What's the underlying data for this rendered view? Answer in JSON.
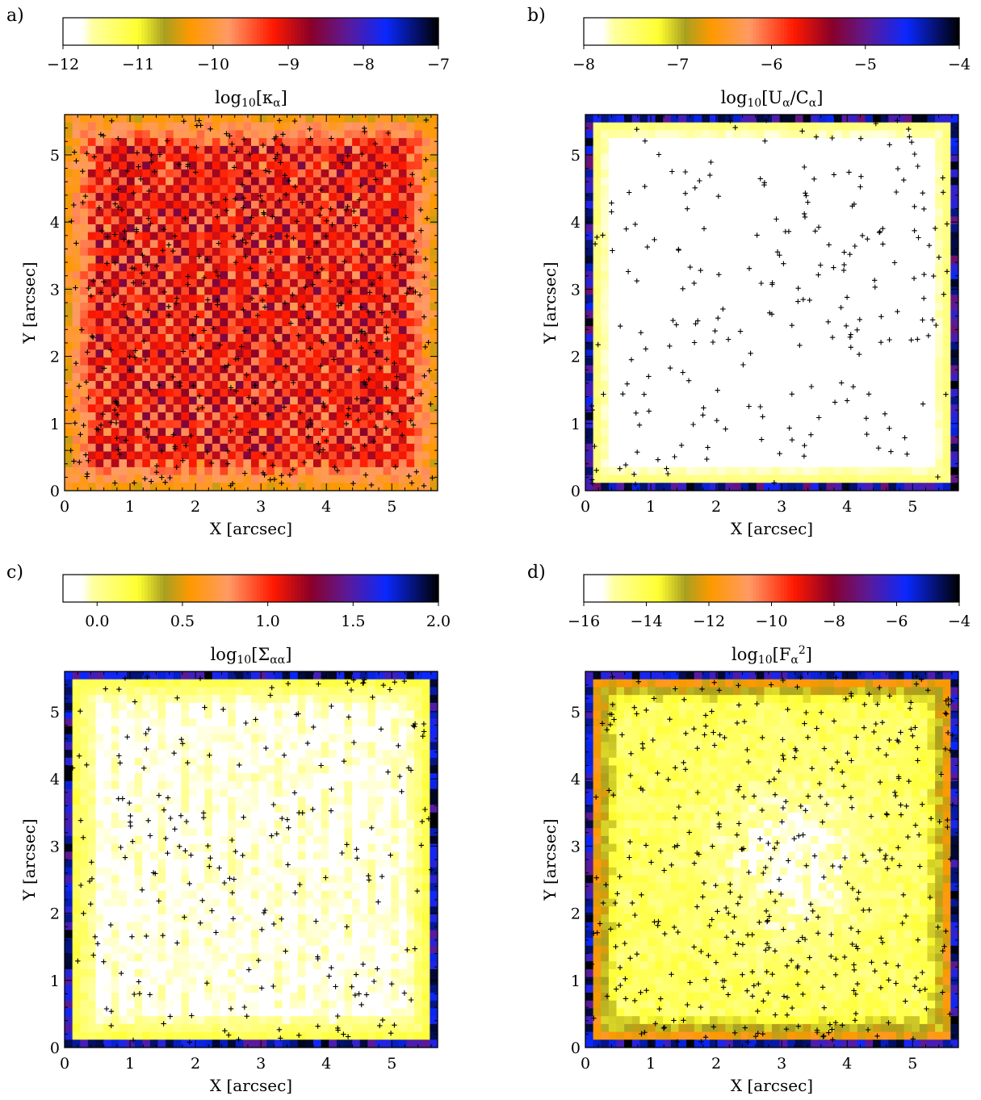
{
  "colormap": {
    "name": "white-yellow-orange-red-purple-blue-black",
    "stops": [
      {
        "pos": 0.0,
        "color": "#ffffff"
      },
      {
        "pos": 0.05,
        "color": "#ffffff"
      },
      {
        "pos": 0.08,
        "color": "#ffffa0"
      },
      {
        "pos": 0.2,
        "color": "#ffff30"
      },
      {
        "pos": 0.27,
        "color": "#a8a020"
      },
      {
        "pos": 0.34,
        "color": "#ff9900"
      },
      {
        "pos": 0.44,
        "color": "#ff9a66"
      },
      {
        "pos": 0.56,
        "color": "#ff1a00"
      },
      {
        "pos": 0.66,
        "color": "#8a0028"
      },
      {
        "pos": 0.76,
        "color": "#5a1a9a"
      },
      {
        "pos": 0.86,
        "color": "#0a28ff"
      },
      {
        "pos": 1.0,
        "color": "#000000"
      }
    ],
    "plus_marker_color": "#000000"
  },
  "chart_data": [
    {
      "type": "heatmap",
      "panel_label": "a)",
      "title_prefix": "log",
      "title_sub": "10",
      "title_arg_open": "[",
      "title_main": "κ",
      "title_main_sub": "α",
      "title_arg_close": "]",
      "colorbar": {
        "range": [
          -12,
          -7
        ],
        "ticks": [
          "−12",
          "−11",
          "−10",
          "−9",
          "−8",
          "−7"
        ]
      },
      "xlabel": "X [arcsec]",
      "ylabel": "Y [arcsec]",
      "xlim": [
        0,
        5.7
      ],
      "ylim": [
        0,
        5.6
      ],
      "xticks": [
        "0",
        "1",
        "2",
        "3",
        "4",
        "5"
      ],
      "yticks": [
        "0",
        "1",
        "2",
        "3",
        "4",
        "5"
      ],
      "grid": false,
      "field": {
        "center_value": -9.15,
        "edge_value": -10.4,
        "noise": 0.6,
        "pattern": "checkerboard",
        "marker_density": "high"
      }
    },
    {
      "type": "heatmap",
      "panel_label": "b)",
      "title_prefix": "log",
      "title_sub": "10",
      "title_arg_open": "[",
      "title_main": "U",
      "title_main_sub": "α",
      "title_mid": "/C",
      "title_mid_sub": "α",
      "title_arg_close": "]",
      "colorbar": {
        "range": [
          -8,
          -4
        ],
        "ticks": [
          "−8",
          "−7",
          "−6",
          "−5",
          "−4"
        ]
      },
      "xlabel": "X [arcsec]",
      "ylabel": "Y [arcsec]",
      "xlim": [
        0,
        5.7
      ],
      "ylim": [
        0,
        5.6
      ],
      "xticks": [
        "0",
        "1",
        "2",
        "3",
        "4",
        "5"
      ],
      "yticks": [
        "0",
        "1",
        "2",
        "3",
        "4",
        "5"
      ],
      "grid": false,
      "field": {
        "center_value": -8.0,
        "edge_value": -7.3,
        "noise": 0.1,
        "pattern": "smooth",
        "dark_rim": true,
        "marker_density": "low"
      }
    },
    {
      "type": "heatmap",
      "panel_label": "c)",
      "title_prefix": "log",
      "title_sub": "10",
      "title_arg_open": "[",
      "title_main": "Σ",
      "title_main_sub": "αα",
      "title_arg_close": "]",
      "colorbar": {
        "range": [
          -0.2,
          2.0
        ],
        "ticks": [
          "0.0",
          "0.5",
          "1.0",
          "1.5",
          "2.0"
        ],
        "tick_values": [
          0.0,
          0.5,
          1.0,
          1.5,
          2.0
        ]
      },
      "xlabel": "X [arcsec]",
      "ylabel": "Y [arcsec]",
      "xlim": [
        0,
        5.7
      ],
      "ylim": [
        0,
        5.6
      ],
      "xticks": [
        "0",
        "1",
        "2",
        "3",
        "4",
        "5"
      ],
      "yticks": [
        "0",
        "1",
        "2",
        "3",
        "4",
        "5"
      ],
      "grid": false,
      "field": {
        "center_value": -0.1,
        "edge_value": 0.3,
        "noise": 0.12,
        "pattern": "stripes",
        "dark_rim": true,
        "marker_density": "low"
      }
    },
    {
      "type": "heatmap",
      "panel_label": "d)",
      "title_prefix": "log",
      "title_sub": "10",
      "title_arg_open": "[",
      "title_main": "F",
      "title_main_sub": "α",
      "title_main_sup": "2",
      "title_arg_close": "]",
      "colorbar": {
        "range": [
          -16,
          -4
        ],
        "ticks": [
          "−16",
          "−14",
          "−12",
          "−10",
          "−8",
          "−6",
          "−4"
        ]
      },
      "xlabel": "X [arcsec]",
      "ylabel": "Y [arcsec]",
      "xlim": [
        0,
        5.7
      ],
      "ylim": [
        0,
        5.6
      ],
      "xticks": [
        "0",
        "1",
        "2",
        "3",
        "4",
        "5"
      ],
      "yticks": [
        "0",
        "1",
        "2",
        "3",
        "4",
        "5"
      ],
      "grid": false,
      "field": {
        "center_value": -14.2,
        "edge_value": -10.8,
        "noise": 1.0,
        "pattern": "noisy",
        "dark_rim": true,
        "marker_density": "high"
      }
    }
  ]
}
